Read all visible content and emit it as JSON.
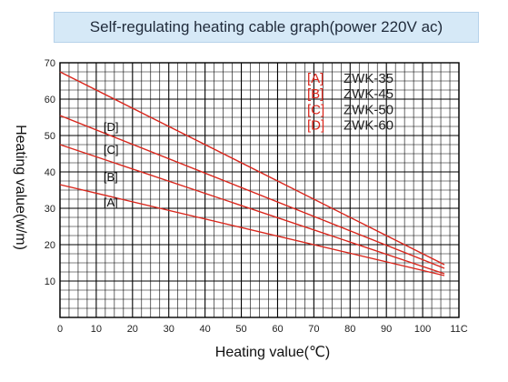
{
  "chart_data": {
    "type": "line",
    "title": "Self-regulating heating cable graph(power 220V ac)",
    "xlabel": "Heating value(℃)",
    "ylabel": "Heating value(w/m)",
    "xlim": [
      0,
      110
    ],
    "ylim": [
      0,
      70
    ],
    "x_ticks": [
      0,
      10,
      20,
      30,
      40,
      50,
      60,
      70,
      80,
      90,
      100,
      "11C"
    ],
    "y_ticks": [
      10,
      20,
      30,
      40,
      50,
      60,
      70
    ],
    "grid": true,
    "legend_position": "top-right",
    "series": [
      {
        "name": "ZWK-35",
        "tag": "[A]",
        "x": [
          0,
          106
        ],
        "y": [
          36.5,
          11.5
        ]
      },
      {
        "name": "ZWK-45",
        "tag": "[B]",
        "x": [
          0,
          106
        ],
        "y": [
          47.5,
          12.0
        ]
      },
      {
        "name": "ZWK-50",
        "tag": "[C]",
        "x": [
          0,
          106
        ],
        "y": [
          55.5,
          13.5
        ]
      },
      {
        "name": "ZWK-60",
        "tag": "[D]",
        "x": [
          0,
          106
        ],
        "y": [
          67.5,
          14.5
        ]
      }
    ],
    "inline_labels": [
      {
        "text": "[D]",
        "x": 12,
        "y": 51.3
      },
      {
        "text": "[C]",
        "x": 12,
        "y": 45.0
      },
      {
        "text": "[B]",
        "x": 12,
        "y": 37.5
      },
      {
        "text": "[A]",
        "x": 12,
        "y": 30.5
      }
    ],
    "colors": {
      "line": "#d9261c",
      "grid": "#000000",
      "tag": "#d9261c",
      "legend_text": "#222222"
    }
  }
}
